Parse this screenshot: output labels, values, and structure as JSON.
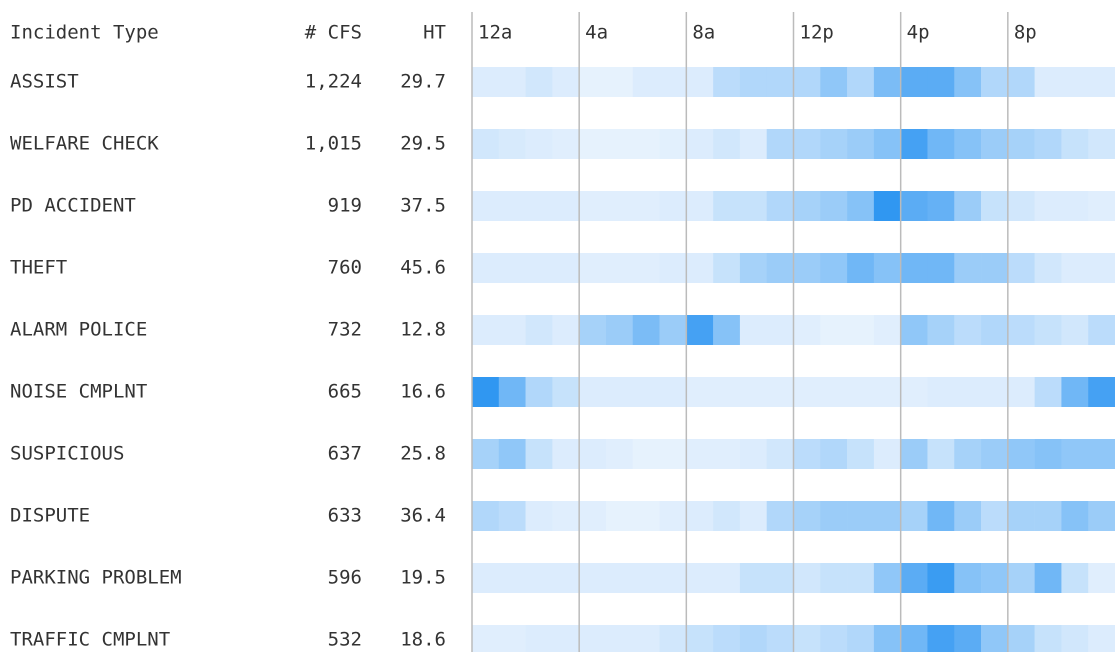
{
  "chart_data": {
    "type": "heatmap",
    "columns": [
      "Incident Type",
      "# CFS",
      "HT"
    ],
    "categories": [
      "ASSIST",
      "WELFARE CHECK",
      "PD ACCIDENT",
      "THEFT",
      "ALARM POLICE",
      "NOISE CMPLNT",
      "SUSPICIOUS",
      "DISPUTE",
      "PARKING PROBLEM",
      "TRAFFIC CMPLNT"
    ],
    "cfs": [
      1224,
      1015,
      919,
      760,
      732,
      665,
      637,
      633,
      596,
      532
    ],
    "cfs_labels": [
      "1,224",
      "1,015",
      "919",
      "760",
      "732",
      "665",
      "637",
      "633",
      "596",
      "532"
    ],
    "ht": [
      29.7,
      29.5,
      37.5,
      45.6,
      12.8,
      16.6,
      25.8,
      36.4,
      19.5,
      18.6
    ],
    "xlim": [
      0,
      24
    ],
    "xticks": [
      {
        "value": 0,
        "label": "12a"
      },
      {
        "value": 4,
        "label": "4a"
      },
      {
        "value": 8,
        "label": "8a"
      },
      {
        "value": 12,
        "label": "12p"
      },
      {
        "value": 16,
        "label": "4p"
      },
      {
        "value": 20,
        "label": "8p"
      }
    ],
    "zlim": [
      0,
      10
    ],
    "color_low": "#f1f7fe",
    "color_high": "#1a8cf0",
    "values": [
      [
        1,
        1,
        1.5,
        1,
        0.5,
        0.5,
        1,
        1,
        1,
        2.5,
        3,
        3,
        3,
        4.5,
        3,
        5.5,
        7,
        7,
        5,
        3,
        3,
        1,
        1,
        1
      ],
      [
        1.5,
        1.2,
        1,
        0.8,
        0.5,
        0.5,
        0.5,
        0.7,
        1,
        1.5,
        1,
        3,
        3,
        3.5,
        4,
        5,
        8,
        6,
        5,
        4,
        3.5,
        3,
        2,
        1.5
      ],
      [
        1,
        1,
        1,
        1,
        0.8,
        0.8,
        0.8,
        1,
        1,
        2,
        2,
        3,
        3.5,
        4,
        5,
        9,
        7,
        6.5,
        4,
        2,
        1.5,
        1,
        1,
        0.8
      ],
      [
        1,
        1,
        1,
        1,
        0.8,
        0.8,
        0.8,
        1,
        1,
        2,
        3.5,
        4,
        4,
        4.5,
        6,
        5,
        6,
        6,
        4,
        4,
        2.5,
        1.5,
        1,
        1
      ],
      [
        1,
        1,
        1.5,
        1,
        3.5,
        4,
        5.5,
        4,
        8,
        5,
        1,
        1,
        0.8,
        0.5,
        0.5,
        0.8,
        4.5,
        3.5,
        2.5,
        3,
        2.5,
        2,
        1.5,
        2.5
      ],
      [
        9,
        6,
        3,
        2,
        1,
        1,
        1,
        1,
        0.8,
        0.8,
        0.8,
        0.8,
        0.8,
        0.8,
        0.8,
        0.8,
        0.8,
        1,
        1,
        1,
        1,
        2.5,
        6,
        8
      ],
      [
        3.5,
        4.5,
        2,
        1,
        1,
        0.8,
        0.5,
        0.5,
        0.8,
        0.8,
        1,
        1.5,
        2.5,
        3,
        2,
        1,
        4,
        2,
        3.5,
        4,
        4.5,
        5,
        4.5,
        4.5
      ],
      [
        3,
        2.5,
        1,
        0.8,
        0.8,
        0.5,
        0.5,
        0.8,
        1,
        1.5,
        1,
        3,
        3.5,
        4,
        4,
        4,
        3.5,
        6,
        4,
        2.5,
        3.5,
        3.5,
        5,
        4
      ],
      [
        1,
        1,
        1,
        1,
        1,
        1,
        1,
        1,
        1,
        1,
        2,
        2,
        1.5,
        2,
        2,
        4.5,
        7,
        8.5,
        5,
        4.5,
        3.5,
        6,
        2,
        0.8
      ],
      [
        0.8,
        0.8,
        1,
        1,
        1,
        1,
        1,
        1.5,
        2,
        2.5,
        3,
        2.5,
        2,
        2.5,
        3,
        5,
        6,
        8,
        7,
        4.5,
        3.5,
        2,
        1.5,
        1
      ]
    ]
  }
}
